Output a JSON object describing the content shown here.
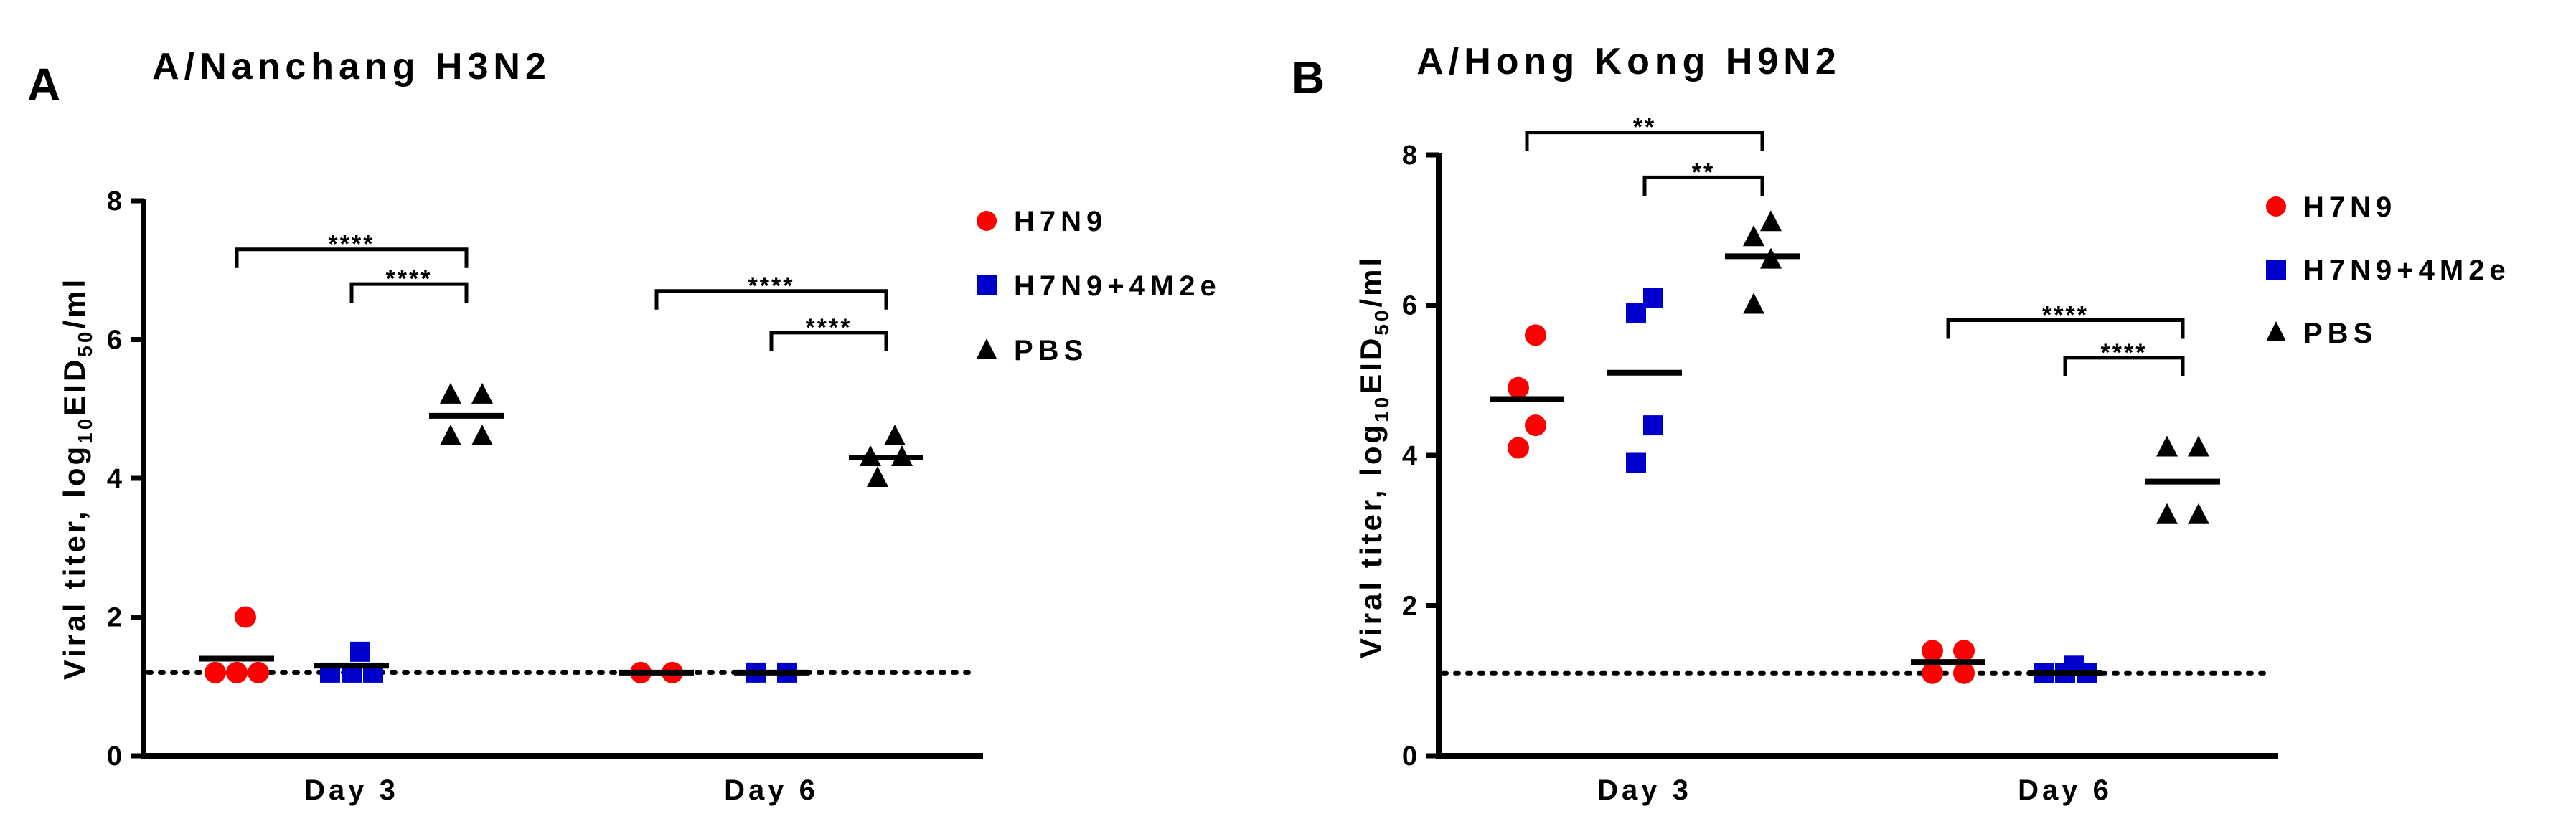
{
  "chart_data": [
    {
      "type": "scatter",
      "panel": "A",
      "title": "A/Nanchang H3N2",
      "ylabel": {
        "prefix": "Viral titer, log",
        "sub1": "10",
        "mid": "EID",
        "sub2": "50",
        "suffix": "/ml"
      },
      "xlabel": "",
      "ylim": [
        0,
        8
      ],
      "yticks": [
        0,
        2,
        4,
        6,
        8
      ],
      "categories": [
        "Day 3",
        "Day 6"
      ],
      "detection_limit": 1.2,
      "series": [
        {
          "name": "H7N9",
          "marker": "circle",
          "color": "#ff0000",
          "points": {
            "Day 3": [
              2.0,
              1.2,
              1.2,
              1.2
            ],
            "Day 6": [
              1.2,
              1.2
            ]
          },
          "means": {
            "Day 3": 1.4,
            "Day 6": 1.2
          }
        },
        {
          "name": "H7N9+4M2e",
          "marker": "square",
          "color": "#0000cc",
          "points": {
            "Day 3": [
              1.5,
              1.2,
              1.2,
              1.2
            ],
            "Day 6": [
              1.2,
              1.2
            ]
          },
          "means": {
            "Day 3": 1.3,
            "Day 6": 1.2
          }
        },
        {
          "name": "PBS",
          "marker": "triangle",
          "color": "#000000",
          "points": {
            "Day 3": [
              5.2,
              5.2,
              4.6,
              4.6
            ],
            "Day 6": [
              4.6,
              4.3,
              4.3,
              4.0
            ]
          },
          "means": {
            "Day 3": 4.9,
            "Day 6": 4.3
          }
        }
      ],
      "significance": [
        {
          "category": "Day 3",
          "from": "H7N9",
          "to": "PBS",
          "label": "****",
          "y": 7.3
        },
        {
          "category": "Day 3",
          "from": "H7N9+4M2e",
          "to": "PBS",
          "label": "****",
          "y": 6.8
        },
        {
          "category": "Day 6",
          "from": "H7N9",
          "to": "PBS",
          "label": "****",
          "y": 6.7
        },
        {
          "category": "Day 6",
          "from": "H7N9+4M2e",
          "to": "PBS",
          "label": "****",
          "y": 6.1
        }
      ]
    },
    {
      "type": "scatter",
      "panel": "B",
      "title": "A/Hong Kong H9N2",
      "ylabel": {
        "prefix": "Viral titer, log",
        "sub1": "10",
        "mid": "EID",
        "sub2": "50",
        "suffix": "/ml"
      },
      "xlabel": "",
      "ylim": [
        0,
        8
      ],
      "yticks": [
        0,
        2,
        4,
        6,
        8
      ],
      "categories": [
        "Day 3",
        "Day 6"
      ],
      "detection_limit": 1.1,
      "series": [
        {
          "name": "H7N9",
          "marker": "circle",
          "color": "#ff0000",
          "points": {
            "Day 3": [
              5.6,
              4.9,
              4.4,
              4.1
            ],
            "Day 6": [
              1.4,
              1.4,
              1.1,
              1.1
            ]
          },
          "means": {
            "Day 3": 4.75,
            "Day 6": 1.25
          }
        },
        {
          "name": "H7N9+4M2e",
          "marker": "square",
          "color": "#0000cc",
          "points": {
            "Day 3": [
              6.1,
              5.9,
              4.4,
              3.9
            ],
            "Day 6": [
              1.2,
              1.1,
              1.1,
              1.1
            ]
          },
          "means": {
            "Day 3": 5.1,
            "Day 6": 1.1
          }
        },
        {
          "name": "PBS",
          "marker": "triangle",
          "color": "#000000",
          "points": {
            "Day 3": [
              7.1,
              6.9,
              6.6,
              6.0
            ],
            "Day 6": [
              4.1,
              4.1,
              3.2,
              3.2
            ]
          },
          "means": {
            "Day 3": 6.65,
            "Day 6": 3.65
          }
        }
      ],
      "significance": [
        {
          "category": "Day 3",
          "from": "H7N9",
          "to": "PBS",
          "label": "**",
          "y": 8.3
        },
        {
          "category": "Day 3",
          "from": "H7N9+4M2e",
          "to": "PBS",
          "label": "**",
          "y": 7.7
        },
        {
          "category": "Day 6",
          "from": "H7N9",
          "to": "PBS",
          "label": "****",
          "y": 5.8
        },
        {
          "category": "Day 6",
          "from": "H7N9+4M2e",
          "to": "PBS",
          "label": "****",
          "y": 5.3
        }
      ]
    }
  ]
}
